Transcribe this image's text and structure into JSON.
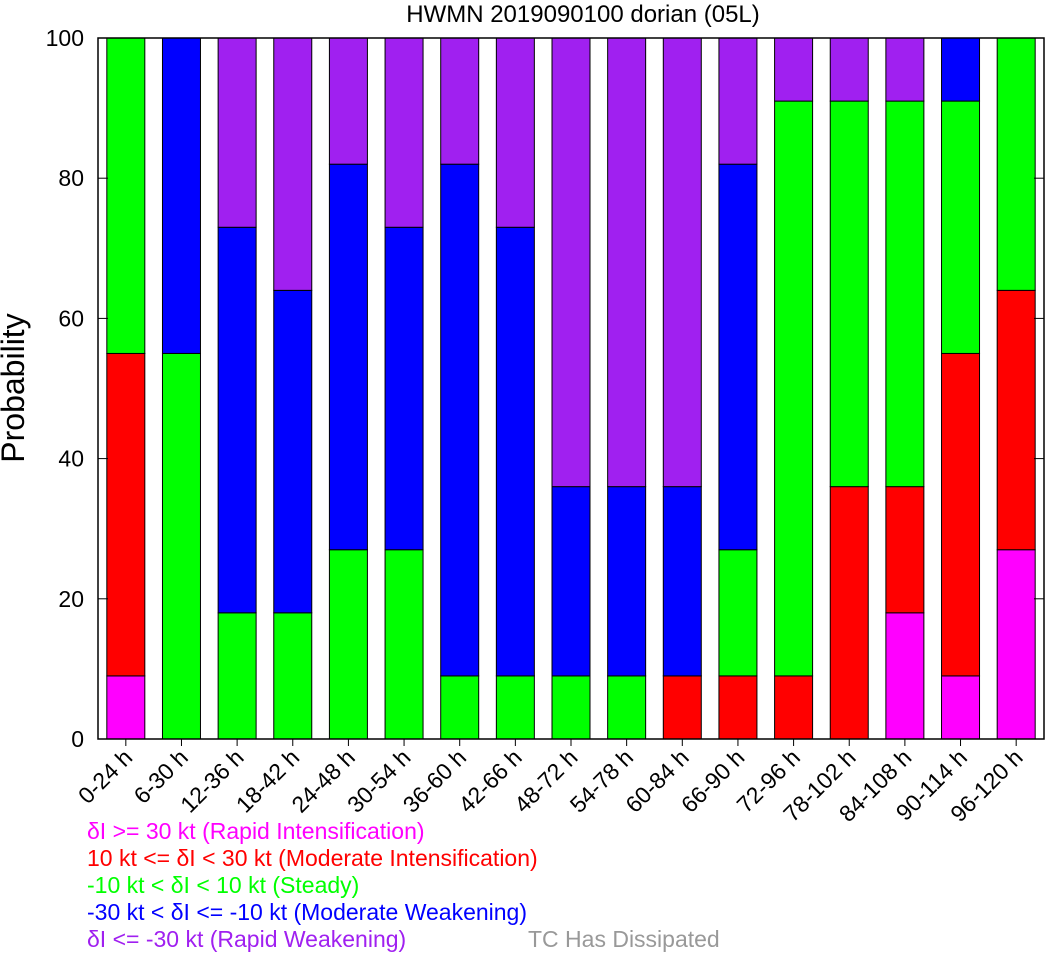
{
  "chart_data": {
    "type": "bar",
    "stacked": true,
    "title": "HWMN 2019090100 dorian (05L)",
    "xlabel": "",
    "ylabel": "Probability",
    "ylim": [
      0,
      100
    ],
    "yticks": [
      0,
      20,
      40,
      60,
      80,
      100
    ],
    "grid": false,
    "categories": [
      "0-24 h",
      "6-30 h",
      "12-36 h",
      "18-42 h",
      "24-48 h",
      "30-54 h",
      "36-60 h",
      "42-66 h",
      "48-72 h",
      "54-78 h",
      "60-84 h",
      "66-90 h",
      "72-96 h",
      "78-102 h",
      "84-108 h",
      "90-114 h",
      "96-120 h"
    ],
    "series": [
      {
        "key": "ri",
        "color": "#ff00ff",
        "values": [
          9,
          0,
          0,
          0,
          0,
          0,
          0,
          0,
          0,
          0,
          0,
          0,
          0,
          0,
          18,
          9,
          27
        ]
      },
      {
        "key": "mi",
        "color": "#ff0000",
        "values": [
          46,
          0,
          0,
          0,
          0,
          0,
          0,
          0,
          0,
          0,
          9,
          9,
          9,
          36,
          18,
          46,
          37
        ]
      },
      {
        "key": "st",
        "color": "#00ff00",
        "values": [
          45,
          55,
          18,
          18,
          27,
          27,
          9,
          9,
          9,
          9,
          0,
          18,
          82,
          55,
          55,
          36,
          36
        ]
      },
      {
        "key": "mw",
        "color": "#0000ff",
        "values": [
          0,
          45,
          55,
          46,
          55,
          46,
          73,
          64,
          27,
          27,
          27,
          55,
          0,
          0,
          0,
          9,
          0
        ]
      },
      {
        "key": "rw",
        "color": "#a020f0",
        "values": [
          0,
          0,
          27,
          36,
          18,
          27,
          18,
          27,
          64,
          64,
          64,
          18,
          9,
          9,
          9,
          0,
          0
        ]
      }
    ]
  },
  "legend": [
    {
      "text": "δI >= 30 kt (Rapid Intensification)",
      "color": "#ff00ff"
    },
    {
      "text": "10 kt <= δI < 30 kt (Moderate Intensification)",
      "color": "#ff0000"
    },
    {
      "text": "-10 kt < δI < 10 kt (Steady)",
      "color": "#00ff00"
    },
    {
      "text": "-30 kt < δI <= -10 kt (Moderate Weakening)",
      "color": "#0000ff"
    },
    {
      "text": "δI <= -30 kt (Rapid Weakening)",
      "color": "#a020f0"
    }
  ],
  "dissipated": {
    "text": "TC Has Dissipated",
    "color": "#999999"
  }
}
